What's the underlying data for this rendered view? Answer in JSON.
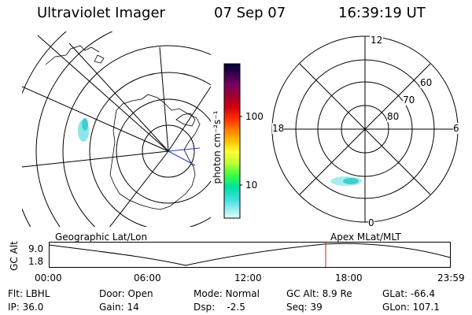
{
  "header": {
    "title": "Ultraviolet Imager",
    "date": "07 Sep 07",
    "time": "16:39:19 UT"
  },
  "geo_map": {
    "label": "Geographic Lat/Lon"
  },
  "colorbar": {
    "unit_label": "photon cm⁻²s⁻¹",
    "ticks": [
      "100",
      "10"
    ],
    "colors": [
      "#000033",
      "#3a0050",
      "#7a0060",
      "#a00030",
      "#d00010",
      "#ff3000",
      "#ff8000",
      "#ffc000",
      "#ffff33",
      "#c0ff33",
      "#40ff40",
      "#00e0a0",
      "#40e0e0",
      "#a0f0f0",
      "#e0ffff"
    ]
  },
  "polar_plot": {
    "label": "Apex MLat/MLT",
    "mlt_labels": {
      "top": "12",
      "right": "6",
      "bottom": "0",
      "left": "18"
    },
    "lat_labels": [
      "60",
      "70",
      "80"
    ]
  },
  "timeline": {
    "ylabel": "GC Alt",
    "ytick_top": "9.0",
    "ytick_bottom": "1.8",
    "xticks": [
      "00:00",
      "06:00",
      "12:00",
      "18:00",
      "23:59"
    ],
    "current_marker_time": "16:39:19"
  },
  "status": {
    "filter": "Flt: LBHL",
    "ip": "IP: 36.0",
    "door": "Door: Open",
    "gain": "Gain: 14",
    "mode": "Mode: Normal",
    "dsp": "Dsp:    -2.5",
    "gc_alt": "GC Alt: 8.9 Re",
    "seq": "Seq: 39",
    "glat": "GLat: -66.4",
    "glon": "GLon: 107.1"
  }
}
